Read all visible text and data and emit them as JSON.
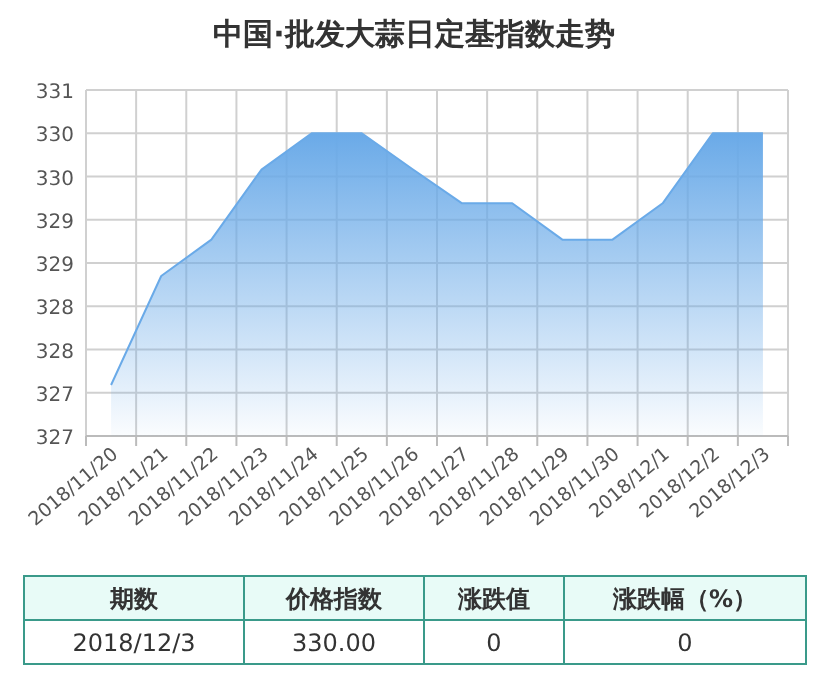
{
  "chart_data": {
    "type": "area",
    "title": "中国·批发大蒜日定基指数走势",
    "categories": [
      "2018/11/20",
      "2018/11/21",
      "2018/11/22",
      "2018/11/23",
      "2018/11/24",
      "2018/11/25",
      "2018/11/26",
      "2018/11/27",
      "2018/11/28",
      "2018/11/29",
      "2018/11/30",
      "2018/12/1",
      "2018/12/2",
      "2018/12/3"
    ],
    "series": [
      {
        "color": "#6aaae8",
        "values": [
          327.09,
          328.35,
          328.77,
          329.58,
          330,
          330,
          329.59,
          329.19,
          329.19,
          328.77,
          328.77,
          329.19,
          330,
          330
        ]
      }
    ],
    "ylim": [
      326.5,
      330.5
    ],
    "yticks": [
      {
        "value": 326.5,
        "label": "327"
      },
      327,
      {
        "value": 327.5,
        "label": "328"
      },
      328,
      {
        "value": 328.5,
        "label": "329"
      },
      329,
      {
        "value": 329.5,
        "label": "330"
      },
      330,
      {
        "value": 330.5,
        "label": "331"
      }
    ],
    "grid": true,
    "annotations": [
      "期数",
      "价格指数",
      "涨跌值",
      "涨跌幅（%）",
      "2018/12/3",
      "330.00",
      "0",
      "0"
    ]
  }
}
